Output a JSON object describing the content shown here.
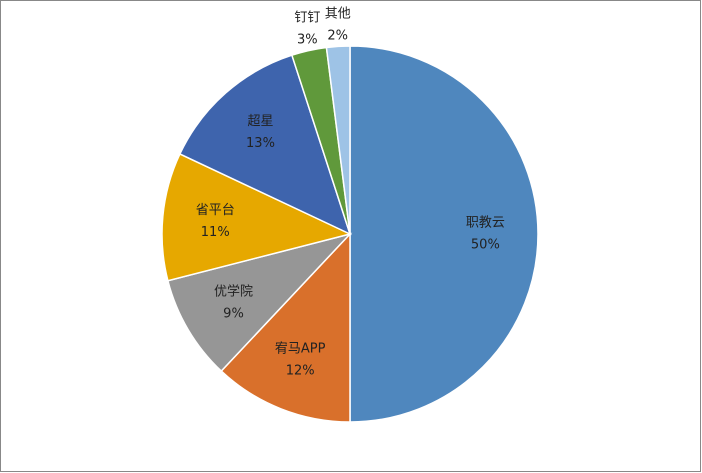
{
  "chart_data": {
    "type": "pie",
    "categories": [
      "职教云",
      "宥马APP",
      "优学院",
      "省平台",
      "超星",
      "钉钉",
      "其他"
    ],
    "values": [
      50,
      12,
      9,
      11,
      13,
      3,
      2
    ],
    "value_labels": [
      "50%",
      "12%",
      "9%",
      "11%",
      "13%",
      "3%",
      "2%"
    ],
    "colors": [
      "#4f87be",
      "#d9702b",
      "#969696",
      "#e6a800",
      "#3e64ad",
      "#60993b",
      "#9ec3e6"
    ]
  }
}
